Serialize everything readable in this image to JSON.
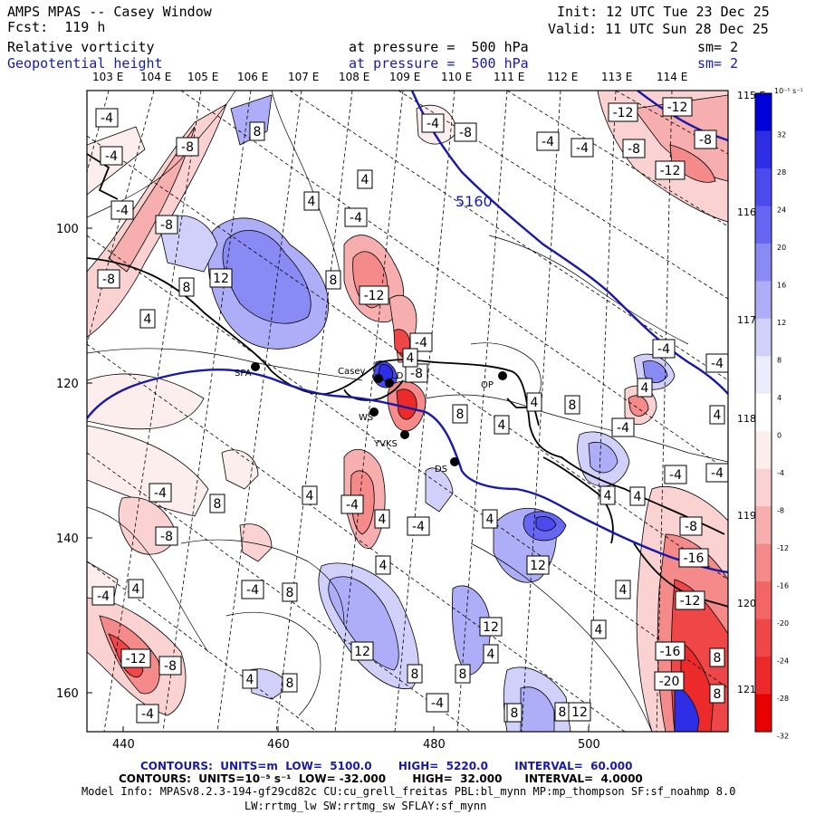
{
  "header": {
    "left_line1": "AMPS MPAS -- Casey Window",
    "left_line2": "Fcst:  119 h",
    "init": "Init: 12 UTC Tue 23 Dec 25",
    "valid": "Valid: 11 UTC Sun 28 Dec 25",
    "field1_name": "Relative vorticity",
    "field1_level": "at pressure =  500 hPa",
    "field1_sm": "sm= 2",
    "field2_name": "Geopotential height",
    "field2_level": "at pressure =  500 hPa",
    "field2_sm": "sm= 2"
  },
  "map": {
    "top_lon_labels": [
      "103 E",
      "104 E",
      "105 E",
      "106 E",
      "107 E",
      "108 E",
      "109 E",
      "110 E",
      "111 E",
      "112 E",
      "113 E",
      "114 E"
    ],
    "right_lon_labels": [
      "115 E",
      "116 E",
      "117 E",
      "118 E",
      "119 E",
      "120 E",
      "121 E"
    ],
    "x_ticks": [
      "440",
      "460",
      "480",
      "500"
    ],
    "y_ticks": [
      "100",
      "120",
      "140",
      "160"
    ],
    "height_contour_label": "5160",
    "stations": [
      "SPA",
      "Casey",
      "LD",
      "WS",
      "YVKS",
      "DS",
      "OP"
    ],
    "vorticity_labels": [
      {
        "v": "-4",
        "s": "neg"
      },
      {
        "v": "-4",
        "s": "neg"
      },
      {
        "v": "8",
        "s": "pos"
      },
      {
        "v": "-8",
        "s": "neg"
      },
      {
        "v": "-4",
        "s": "neg"
      },
      {
        "v": "-8",
        "s": "neg"
      },
      {
        "v": "-8",
        "s": "neg"
      },
      {
        "v": "-4",
        "s": "neg"
      },
      {
        "v": "-4",
        "s": "neg"
      },
      {
        "v": "-8",
        "s": "neg"
      },
      {
        "v": "-12",
        "s": "neg"
      },
      {
        "v": "-8",
        "s": "neg"
      },
      {
        "v": "-12",
        "s": "neg"
      },
      {
        "v": "-12",
        "s": "neg"
      },
      {
        "v": "4",
        "s": "pos"
      },
      {
        "v": "4",
        "s": "pos"
      },
      {
        "v": "-4",
        "s": "neg"
      },
      {
        "v": "-4",
        "s": "neg"
      },
      {
        "v": "-4",
        "s": "neg"
      },
      {
        "v": "-8",
        "s": "neg"
      },
      {
        "v": "8",
        "s": "pos"
      },
      {
        "v": "12",
        "s": "pos"
      },
      {
        "v": "8",
        "s": "pos"
      },
      {
        "v": "-12",
        "s": "neg"
      },
      {
        "v": "4",
        "s": "pos"
      },
      {
        "v": "-4",
        "s": "neg"
      },
      {
        "v": "-4",
        "s": "neg"
      },
      {
        "v": "-8",
        "s": "neg"
      },
      {
        "v": "4",
        "s": "pos"
      },
      {
        "v": "4",
        "s": "pos"
      },
      {
        "v": "8",
        "s": "pos"
      },
      {
        "v": "4",
        "s": "pos"
      },
      {
        "v": "4",
        "s": "pos"
      },
      {
        "v": "8",
        "s": "pos"
      },
      {
        "v": "-4",
        "s": "neg"
      },
      {
        "v": "4",
        "s": "pos"
      },
      {
        "v": "-4",
        "s": "neg"
      },
      {
        "v": "-4",
        "s": "neg"
      },
      {
        "v": "4",
        "s": "pos"
      },
      {
        "v": "4",
        "s": "pos"
      },
      {
        "v": "-4",
        "s": "neg"
      },
      {
        "v": "4",
        "s": "pos"
      },
      {
        "v": "-4",
        "s": "neg"
      },
      {
        "v": "4",
        "s": "pos"
      },
      {
        "v": "8",
        "s": "pos"
      },
      {
        "v": "8",
        "s": "pos"
      },
      {
        "v": "-8",
        "s": "neg"
      },
      {
        "v": "4",
        "s": "pos"
      },
      {
        "v": "-4",
        "s": "neg"
      },
      {
        "v": "4",
        "s": "pos"
      },
      {
        "v": "12",
        "s": "pos"
      },
      {
        "v": "-8",
        "s": "neg"
      },
      {
        "v": "-16",
        "s": "neg"
      },
      {
        "v": "-4",
        "s": "neg"
      },
      {
        "v": "-4",
        "s": "neg"
      },
      {
        "v": "4",
        "s": "pos"
      },
      {
        "v": "4",
        "s": "pos"
      },
      {
        "v": "-12",
        "s": "neg"
      },
      {
        "v": "4",
        "s": "pos"
      },
      {
        "v": "4",
        "s": "pos"
      },
      {
        "v": "12",
        "s": "pos"
      },
      {
        "v": "-12",
        "s": "neg"
      },
      {
        "v": "-8",
        "s": "neg"
      },
      {
        "v": "4",
        "s": "pos"
      },
      {
        "v": "8",
        "s": "pos"
      },
      {
        "v": "8",
        "s": "pos"
      },
      {
        "v": "8",
        "s": "pos"
      },
      {
        "v": "12",
        "s": "pos"
      },
      {
        "v": "4",
        "s": "pos"
      },
      {
        "v": "-16",
        "s": "neg"
      },
      {
        "v": "8",
        "s": "pos"
      },
      {
        "v": "-20",
        "s": "neg"
      },
      {
        "v": "-4",
        "s": "neg"
      },
      {
        "v": "8",
        "s": "pos"
      },
      {
        "v": "-4",
        "s": "neg"
      },
      {
        "v": "8",
        "s": "pos"
      },
      {
        "v": "12",
        "s": "pos"
      },
      {
        "v": "8",
        "s": "pos"
      }
    ]
  },
  "colorbar": {
    "unit": "10⁻⁵ s⁻¹",
    "labels": [
      "32",
      "28",
      "24",
      "20",
      "16",
      "12",
      "8",
      "4",
      "0",
      "-4",
      "-8",
      "-12",
      "-16",
      "-20",
      "-24",
      "-28",
      "-32"
    ],
    "colors": [
      "#0000d8",
      "#2e2ee6",
      "#4a4aee",
      "#6666f2",
      "#8a8af4",
      "#aeaef8",
      "#d0d0fa",
      "#ececfc",
      "#ffffff",
      "#fdeeee",
      "#fad2d2",
      "#f7aeae",
      "#f48a8a",
      "#f26666",
      "#ef4747",
      "#ec2a2a",
      "#e80000"
    ]
  },
  "footer": {
    "contours1": "CONTOURS:  UNITS=m  LOW=  5100.0       HIGH=  5220.0       INTERVAL=  60.000",
    "contours2": "CONTOURS:  UNITS=10⁻⁵ s⁻¹  LOW= -32.000       HIGH=  32.000      INTERVAL=  4.0000",
    "model_info": "Model Info: MPASv8.2.3-194-gf29cd82c CU:cu_grell_freitas PBL:bl_mynn MP:mp_thompson SF:sf_noahmp 8.0",
    "model_info2": "LW:rrtmg_lw SW:rrtmg_sw SFLAY:sf_mynn"
  }
}
